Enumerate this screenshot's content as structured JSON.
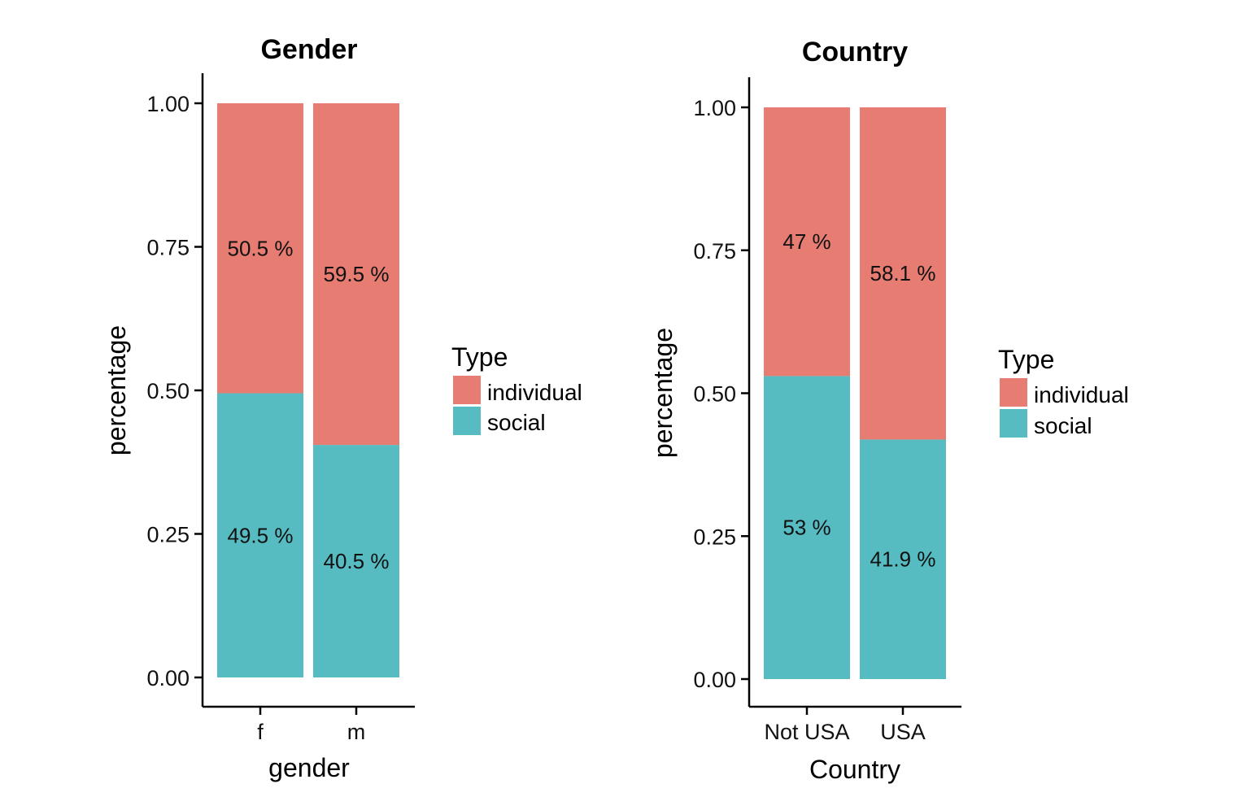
{
  "chart_data": [
    {
      "type": "bar",
      "stacked": true,
      "title": "Gender",
      "xlabel": "gender",
      "ylabel": "percentage",
      "ylim": [
        0,
        1
      ],
      "yticks": [
        "0.00",
        "0.25",
        "0.50",
        "0.75",
        "1.00"
      ],
      "categories": [
        "f",
        "m"
      ],
      "series": [
        {
          "name": "social",
          "color": "#56BCC2",
          "values": [
            0.495,
            0.405
          ],
          "labels": [
            "49.5 %",
            "40.5 %"
          ]
        },
        {
          "name": "individual",
          "color": "#E77D72",
          "values": [
            0.505,
            0.595
          ],
          "labels": [
            "50.5 %",
            "59.5 %"
          ]
        }
      ],
      "legend": {
        "title": "Type",
        "position": "right",
        "entries": [
          "individual",
          "social"
        ]
      }
    },
    {
      "type": "bar",
      "stacked": true,
      "title": "Country",
      "xlabel": "Country",
      "ylabel": "percentage",
      "ylim": [
        0,
        1
      ],
      "yticks": [
        "0.00",
        "0.25",
        "0.50",
        "0.75",
        "1.00"
      ],
      "categories": [
        "Not USA",
        "USA"
      ],
      "series": [
        {
          "name": "social",
          "color": "#56BCC2",
          "values": [
            0.53,
            0.419
          ],
          "labels": [
            "53 %",
            "41.9 %"
          ]
        },
        {
          "name": "individual",
          "color": "#E77D72",
          "values": [
            0.47,
            0.581
          ],
          "labels": [
            "47 %",
            "58.1 %"
          ]
        }
      ],
      "legend": {
        "title": "Type",
        "position": "right",
        "entries": [
          "individual",
          "social"
        ]
      }
    }
  ]
}
